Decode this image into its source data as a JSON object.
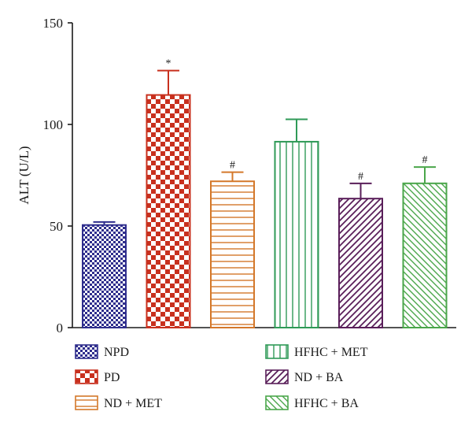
{
  "chart_data": {
    "type": "bar",
    "title": "",
    "xlabel": "",
    "ylabel": "ALT (U/L)",
    "ylim": [
      0,
      150
    ],
    "yticks": [
      0,
      50,
      100,
      150
    ],
    "grid": false,
    "legend_position": "bottom",
    "categories": [
      "NPD",
      "PD",
      "ND + MET",
      "HFHC + MET",
      "ND + BA",
      "HFHC + BA"
    ],
    "values": [
      50.5,
      114.5,
      72,
      91.5,
      63.5,
      71
    ],
    "errors": [
      1.5,
      12,
      4.5,
      11,
      7.5,
      8
    ],
    "annotations": [
      "",
      "*",
      "#",
      "",
      "#",
      "#"
    ],
    "colors": [
      "#2e2d8c",
      "#c8301e",
      "#d4782a",
      "#2f9a57",
      "#5a1f5a",
      "#4aa64a"
    ],
    "patterns": [
      "checker-small",
      "checker-large",
      "hlines",
      "vlines",
      "diag-up",
      "diag-down"
    ]
  }
}
